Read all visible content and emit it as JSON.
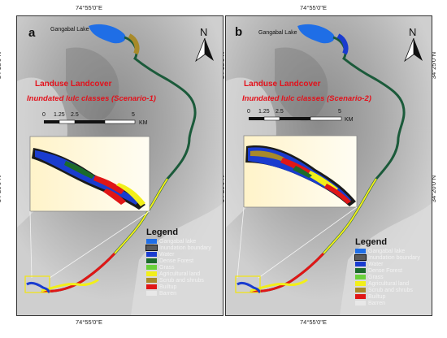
{
  "coords": {
    "top_lon": "74°55'0\"E",
    "bottom_lon": "74°55'0\"E",
    "lat_top": "34°25'0\"N",
    "lat_bottom": "34°20'0\"N"
  },
  "panels": [
    {
      "label": "a",
      "lake_label": "Gangabal Lake",
      "title": "Landuse Landcover",
      "subtitle": "Inundated lulc classes (Scenario-1)",
      "north": "N",
      "scalebar": {
        "ticks": [
          "0",
          "1.25",
          "2.5",
          "5"
        ],
        "unit": "KM"
      }
    },
    {
      "label": "b",
      "lake_label": "Gangabal Lake",
      "title": "Landuse Landcover",
      "subtitle": "Inundated lulc classes (Scenario-2)",
      "north": "N",
      "scalebar": {
        "ticks": [
          "0",
          "1.25",
          "2.5",
          "5"
        ],
        "unit": "KM"
      }
    }
  ],
  "legend": {
    "title": "Legend",
    "items": [
      {
        "label": "Gangabal lake",
        "color": "#1f6ee6"
      },
      {
        "label": "Inundation boundary",
        "color": "#5a5a5a"
      },
      {
        "label": "Water",
        "color": "#1a3ccf"
      },
      {
        "label": "Dense Forest",
        "color": "#1b6b2a"
      },
      {
        "label": "Grass",
        "color": "#6ad13a"
      },
      {
        "label": "Agricultural land",
        "color": "#f2ef1a"
      },
      {
        "label": "Scrub and shrubs",
        "color": "#a88a2a"
      },
      {
        "label": "Builtup",
        "color": "#e01616"
      },
      {
        "label": "Barren",
        "color": "#e8e8e8"
      }
    ]
  }
}
